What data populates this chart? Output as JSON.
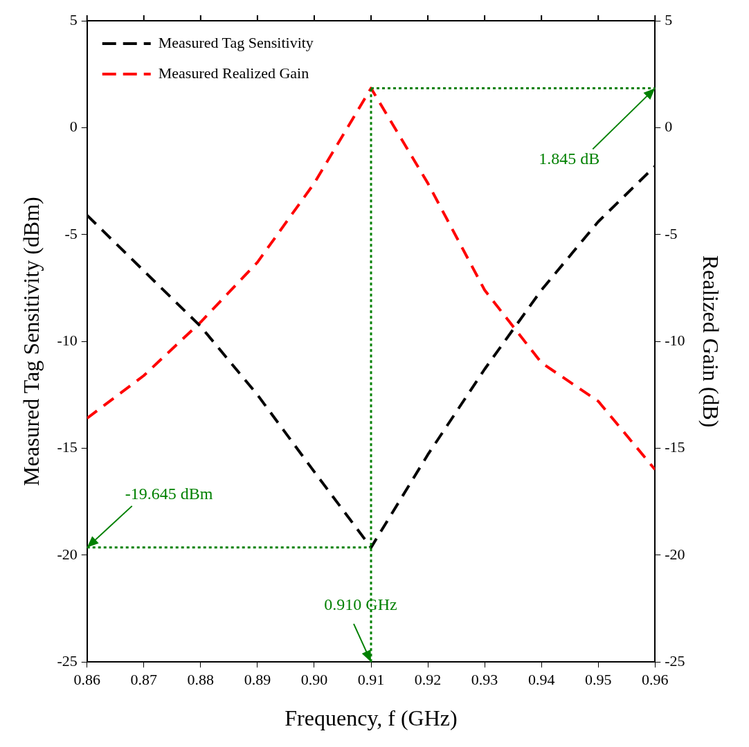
{
  "chart_data": {
    "type": "line",
    "xlabel": "Frequency, f (GHz)",
    "ylabel": "Measured Tag Sensitivity (dBm)",
    "y2label": "Realized Gain (dB)",
    "x": [
      0.86,
      0.87,
      0.88,
      0.89,
      0.9,
      0.91,
      0.92,
      0.93,
      0.94,
      0.95,
      0.96
    ],
    "series": [
      {
        "name": "Measured Tag Sensitivity",
        "color": "#000000",
        "values": [
          -4.1,
          -6.7,
          -9.3,
          -12.5,
          -16.1,
          -19.645,
          -15.3,
          -11.3,
          -7.6,
          -4.4,
          -1.8
        ]
      },
      {
        "name": "Measured Realized Gain",
        "color": "#ff0000",
        "axis": "y2",
        "values": [
          -13.6,
          -11.6,
          -9.1,
          -6.3,
          -2.6,
          1.845,
          -2.6,
          -7.6,
          -11.0,
          -12.8,
          -16.0
        ]
      }
    ],
    "xlim": [
      0.86,
      0.96
    ],
    "xticks": [
      0.86,
      0.87,
      0.88,
      0.89,
      {
        "value": 0.9,
        "label": "0.90"
      },
      0.91,
      0.92,
      0.93,
      0.94,
      0.95,
      0.96
    ],
    "ylim": [
      -25,
      5
    ],
    "yticks": [
      -25,
      -20,
      -15,
      -10,
      -5,
      0,
      5
    ],
    "y2lim": [
      -25,
      5
    ],
    "y2ticks": [
      -25,
      -20,
      -15,
      -10,
      -5,
      0,
      5
    ],
    "ref_lines": [
      {
        "axis": "y",
        "value": -19.645,
        "color": "#008000",
        "line_style": "dotted"
      },
      {
        "axis": "x",
        "value": 0.91,
        "color": "#008000",
        "line_style": "dotted"
      },
      {
        "axis": "y2",
        "value": 1.845,
        "color": "#008000",
        "line_style": "dotted"
      }
    ],
    "annotations": [
      {
        "text": "1.845 dB",
        "x": 0.96,
        "y": 1.845
      },
      {
        "text": "-19.645 dBm",
        "x": 0.86,
        "y": -19.645
      },
      {
        "text": "0.910 GHz",
        "x": 0.91,
        "y": -25
      }
    ],
    "legend": "top left",
    "line_style": "dashed",
    "marker": "none"
  }
}
